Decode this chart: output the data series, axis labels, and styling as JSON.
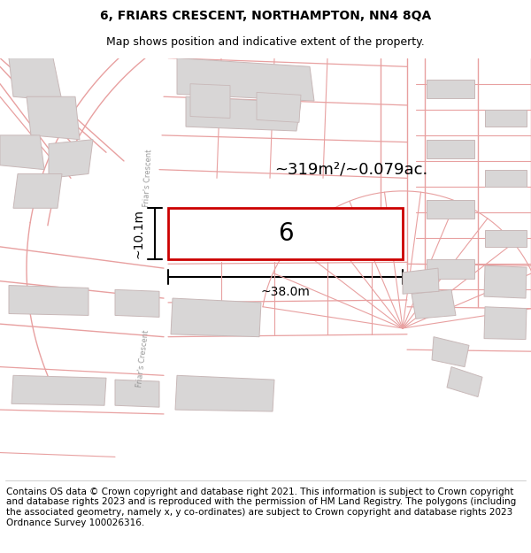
{
  "title": "6, FRIARS CRESCENT, NORTHAMPTON, NN4 8QA",
  "subtitle": "Map shows position and indicative extent of the property.",
  "footer": "Contains OS data © Crown copyright and database right 2021. This information is subject to Crown copyright and database rights 2023 and is reproduced with the permission of HM Land Registry. The polygons (including the associated geometry, namely x, y co-ordinates) are subject to Crown copyright and database rights 2023 Ordnance Survey 100026316.",
  "area_label": "~319m²/~0.079ac.",
  "width_label": "~38.0m",
  "height_label": "~10.1m",
  "plot_number": "6",
  "map_bg": "#f7f5f5",
  "plot_border": "#cc0000",
  "road_color": "#e8a0a0",
  "building_fill": "#d8d6d6",
  "building_edge": "#c8b8b8",
  "road_label_color": "#999999",
  "title_fontsize": 10,
  "subtitle_fontsize": 9,
  "footer_fontsize": 7.5
}
